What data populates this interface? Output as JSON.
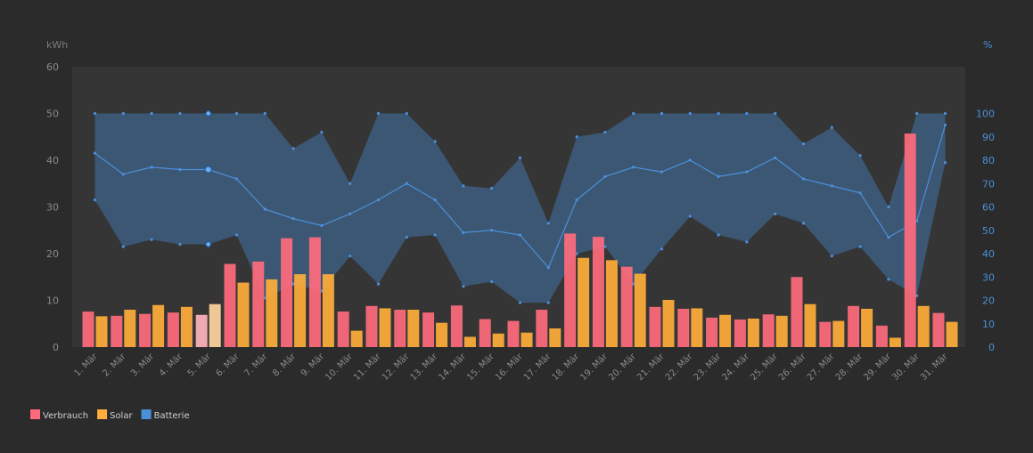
{
  "chart_data": {
    "type": "bar",
    "left_axis": {
      "unit_label": "kWh",
      "ylim": [
        0,
        60
      ],
      "ticks": [
        0,
        10,
        20,
        30,
        40,
        50,
        60
      ]
    },
    "right_axis": {
      "unit_label": "%",
      "ylim": [
        0,
        100
      ],
      "ticks": [
        0,
        10,
        20,
        30,
        40,
        50,
        60,
        70,
        80,
        90,
        100
      ]
    },
    "categories": [
      "1. Mär",
      "2. Mär",
      "3. Mär",
      "4. Mär",
      "5. Mär",
      "6. Mär",
      "7. Mär",
      "8. Mär",
      "9. Mär",
      "10. Mär",
      "11. Mär",
      "12. Mär",
      "13. Mär",
      "14. Mär",
      "15. Mär",
      "16. Mär",
      "17. Mär",
      "18. Mär",
      "19. Mär",
      "20. Mär",
      "21. Mär",
      "22. Mär",
      "23. Mär",
      "24. Mär",
      "25. Mär",
      "26. Mär",
      "27. Mär",
      "28. Mär",
      "29. Mär",
      "30. Mär",
      "31. Mär"
    ],
    "highlighted_category": "5. Mär",
    "series": [
      {
        "name": "Verbrauch",
        "type": "bar",
        "axis": "left",
        "color": "#ff6b7d",
        "values": [
          7.6,
          6.7,
          7.1,
          7.4,
          6.9,
          17.8,
          18.3,
          23.3,
          23.5,
          7.6,
          8.8,
          8.0,
          7.4,
          8.9,
          6.0,
          5.6,
          8.0,
          24.3,
          23.6,
          17.2,
          8.6,
          8.2,
          6.3,
          5.9,
          7.0,
          15.0,
          5.4,
          8.8,
          4.6,
          45.7,
          7.3
        ]
      },
      {
        "name": "Solar",
        "type": "bar",
        "axis": "left",
        "color": "#ffae3b",
        "values": [
          6.6,
          8.0,
          9.0,
          8.6,
          9.2,
          13.8,
          14.5,
          15.6,
          15.6,
          3.5,
          8.3,
          8.0,
          5.2,
          2.2,
          2.9,
          3.1,
          4.0,
          19.1,
          18.6,
          15.7,
          10.1,
          8.3,
          6.9,
          6.1,
          6.7,
          9.2,
          5.6,
          8.2,
          2.0,
          8.8,
          5.4
        ]
      },
      {
        "name": "Batterie",
        "type": "area",
        "axis": "right",
        "color": "#4a90d9",
        "avg": [
          83,
          74,
          77,
          76,
          76,
          72,
          59,
          55,
          52,
          57,
          63,
          70,
          63,
          49,
          50,
          48,
          34,
          63,
          73,
          77,
          75,
          80,
          73,
          75,
          81,
          72,
          69,
          66,
          47,
          54,
          95
        ],
        "max": [
          100,
          100,
          100,
          100,
          100,
          100,
          100,
          85,
          92,
          70,
          100,
          100,
          88,
          69,
          68,
          81,
          53,
          90,
          92,
          100,
          100,
          100,
          100,
          100,
          100,
          87,
          94,
          82,
          60,
          100,
          100
        ],
        "min": [
          63,
          43,
          46,
          44,
          44,
          48,
          21,
          27,
          24,
          39,
          27,
          47,
          48,
          26,
          28,
          19,
          19,
          40,
          43,
          27,
          42,
          56,
          48,
          45,
          57,
          53,
          39,
          43,
          29,
          22,
          79
        ]
      }
    ],
    "legend": {
      "placement": "bottom-left"
    },
    "grid": false
  }
}
